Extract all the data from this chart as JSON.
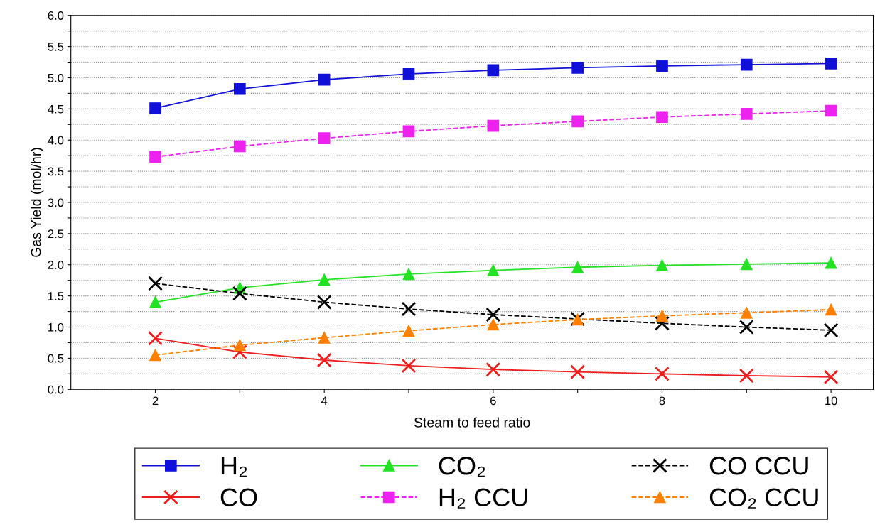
{
  "chart_data": {
    "type": "line",
    "xlabel": "Steam to feed ratio",
    "ylabel": "Gas Yield (mol/hr)",
    "x": [
      2,
      3,
      4,
      5,
      6,
      7,
      8,
      9,
      10
    ],
    "series": [
      {
        "name": "H₂",
        "color": "#1010d8",
        "marker": "square",
        "line_style": "solid",
        "values": [
          4.51,
          4.82,
          4.97,
          5.06,
          5.12,
          5.16,
          5.19,
          5.21,
          5.23
        ]
      },
      {
        "name": "CO",
        "color": "#ee1c1c",
        "marker": "cross",
        "line_style": "solid",
        "values": [
          0.82,
          0.6,
          0.47,
          0.38,
          0.32,
          0.28,
          0.25,
          0.22,
          0.2
        ]
      },
      {
        "name": "CO₂",
        "color": "#22e222",
        "marker": "triangle",
        "line_style": "solid",
        "values": [
          1.4,
          1.63,
          1.76,
          1.85,
          1.91,
          1.96,
          1.99,
          2.01,
          2.03
        ]
      },
      {
        "name": "H₂ CCU",
        "color": "#ee22ee",
        "marker": "square",
        "line_style": "dashed",
        "values": [
          3.73,
          3.9,
          4.03,
          4.14,
          4.23,
          4.3,
          4.37,
          4.42,
          4.47
        ]
      },
      {
        "name": "CO CCU",
        "color": "#000000",
        "marker": "cross",
        "line_style": "dashed",
        "values": [
          1.7,
          1.54,
          1.4,
          1.29,
          1.2,
          1.13,
          1.06,
          1.0,
          0.95
        ]
      },
      {
        "name": "CO₂ CCU",
        "color": "#ff8000",
        "marker": "triangle",
        "line_style": "dashed",
        "values": [
          0.55,
          0.71,
          0.83,
          0.94,
          1.04,
          1.12,
          1.18,
          1.23,
          1.28
        ]
      }
    ],
    "xlim": [
      1,
      10.5
    ],
    "xticks": [
      2,
      {
        "value": 3,
        "label": null
      },
      4,
      {
        "value": 5,
        "label": null
      },
      6,
      {
        "value": 7,
        "label": null
      },
      8,
      {
        "value": 9,
        "label": null
      },
      10
    ],
    "ylim": [
      0,
      6
    ],
    "yticks": [
      {
        "value": 0,
        "label": "0.0"
      },
      {
        "value": 0.25,
        "label": null
      },
      {
        "value": 0.5,
        "label": "0.5"
      },
      {
        "value": 0.75,
        "label": null
      },
      {
        "value": 1,
        "label": "1.0"
      },
      {
        "value": 1.25,
        "label": null
      },
      {
        "value": 1.5,
        "label": "1.5"
      },
      {
        "value": 1.75,
        "label": null
      },
      {
        "value": 2,
        "label": "2.0"
      },
      {
        "value": 2.25,
        "label": null
      },
      {
        "value": 2.5,
        "label": "2.5"
      },
      {
        "value": 2.75,
        "label": null
      },
      {
        "value": 3,
        "label": "3.0"
      },
      {
        "value": 3.25,
        "label": null
      },
      {
        "value": 3.5,
        "label": "3.5"
      },
      {
        "value": 3.75,
        "label": null
      },
      {
        "value": 4,
        "label": "4.0"
      },
      {
        "value": 4.25,
        "label": null
      },
      {
        "value": 4.5,
        "label": "4.5"
      },
      {
        "value": 4.75,
        "label": null
      },
      {
        "value": 5,
        "label": "5.0"
      },
      {
        "value": 5.25,
        "label": null
      },
      {
        "value": 5.5,
        "label": "5.5"
      },
      {
        "value": 5.75,
        "label": null
      },
      {
        "value": 6,
        "label": "6.0"
      }
    ],
    "grid": "y",
    "legend": "bottom"
  }
}
